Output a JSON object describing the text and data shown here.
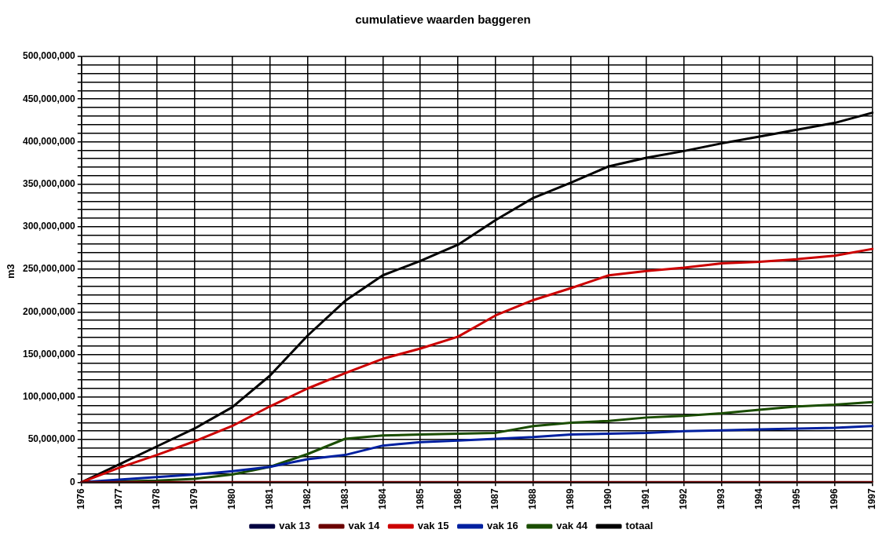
{
  "chart_data": {
    "type": "line",
    "title": "cumulatieve waarden baggeren",
    "ylabel": "m3",
    "categories": [
      "1976",
      "1977",
      "1978",
      "1979",
      "1980",
      "1981",
      "1982",
      "1983",
      "1984",
      "1985",
      "1986",
      "1987",
      "1988",
      "1989",
      "1990",
      "1991",
      "1992",
      "1993",
      "1994",
      "1995",
      "1996",
      "1997"
    ],
    "series": [
      {
        "name": "vak 13",
        "color": "#000040",
        "values": [
          null,
          null,
          null,
          null,
          null,
          null,
          null,
          null,
          null,
          null,
          null,
          null,
          null,
          null,
          null,
          null,
          null,
          null,
          null,
          null,
          null,
          null
        ]
      },
      {
        "name": "vak 14",
        "color": "#6b0000",
        "values": [
          0,
          0,
          0,
          0,
          0,
          0,
          0,
          0,
          0,
          0,
          0,
          0,
          0,
          0,
          0,
          0,
          0,
          0,
          0,
          0,
          0,
          0
        ]
      },
      {
        "name": "vak 15",
        "color": "#cc0000",
        "values": [
          0,
          17000000,
          32000000,
          48000000,
          66000000,
          89000000,
          110000000,
          128000000,
          145000000,
          157000000,
          171000000,
          196000000,
          214000000,
          228000000,
          243000000,
          248000000,
          252000000,
          257000000,
          259000000,
          262000000,
          266000000,
          274000000
        ]
      },
      {
        "name": "vak 16",
        "color": "#0020a0",
        "values": [
          0,
          3000000,
          6000000,
          9000000,
          13000000,
          18000000,
          27000000,
          32000000,
          43000000,
          47000000,
          49000000,
          51000000,
          53000000,
          56000000,
          57000000,
          58000000,
          60000000,
          61000000,
          62000000,
          63000000,
          64000000,
          66000000
        ]
      },
      {
        "name": "vak 44",
        "color": "#1a4d00",
        "values": [
          0,
          1000000,
          2000000,
          4000000,
          9000000,
          18000000,
          33000000,
          51000000,
          55000000,
          56000000,
          57000000,
          58000000,
          66000000,
          70000000,
          72000000,
          76000000,
          78000000,
          81000000,
          85000000,
          89000000,
          91000000,
          94000000
        ]
      },
      {
        "name": "totaal",
        "color": "#000000",
        "values": [
          0,
          21000000,
          42000000,
          63000000,
          88000000,
          125000000,
          172000000,
          213000000,
          243000000,
          260000000,
          279000000,
          308000000,
          334000000,
          352000000,
          371000000,
          381000000,
          389000000,
          398000000,
          406000000,
          414000000,
          422000000,
          434000000
        ]
      }
    ],
    "ylim": [
      0,
      500000000
    ],
    "yticks": [
      0,
      {
        "value": 10000000,
        "label": null
      },
      {
        "value": 20000000,
        "label": null
      },
      {
        "value": 30000000,
        "label": null
      },
      {
        "value": 40000000,
        "label": null
      },
      {
        "value": 50000000,
        "label": "50,000,000"
      },
      {
        "value": 60000000,
        "label": null
      },
      {
        "value": 70000000,
        "label": null
      },
      {
        "value": 80000000,
        "label": null
      },
      {
        "value": 90000000,
        "label": null
      },
      {
        "value": 100000000,
        "label": "100,000,000"
      },
      {
        "value": 110000000,
        "label": null
      },
      {
        "value": 120000000,
        "label": null
      },
      {
        "value": 130000000,
        "label": null
      },
      {
        "value": 140000000,
        "label": null
      },
      {
        "value": 150000000,
        "label": "150,000,000"
      },
      {
        "value": 160000000,
        "label": null
      },
      {
        "value": 170000000,
        "label": null
      },
      {
        "value": 180000000,
        "label": null
      },
      {
        "value": 190000000,
        "label": null
      },
      {
        "value": 200000000,
        "label": "200,000,000"
      },
      {
        "value": 210000000,
        "label": null
      },
      {
        "value": 220000000,
        "label": null
      },
      {
        "value": 230000000,
        "label": null
      },
      {
        "value": 240000000,
        "label": null
      },
      {
        "value": 250000000,
        "label": "250,000,000"
      },
      {
        "value": 260000000,
        "label": null
      },
      {
        "value": 270000000,
        "label": null
      },
      {
        "value": 280000000,
        "label": null
      },
      {
        "value": 290000000,
        "label": null
      },
      {
        "value": 300000000,
        "label": "300,000,000"
      },
      {
        "value": 310000000,
        "label": null
      },
      {
        "value": 320000000,
        "label": null
      },
      {
        "value": 330000000,
        "label": null
      },
      {
        "value": 340000000,
        "label": null
      },
      {
        "value": 350000000,
        "label": "350,000,000"
      },
      {
        "value": 360000000,
        "label": null
      },
      {
        "value": 370000000,
        "label": null
      },
      {
        "value": 380000000,
        "label": null
      },
      {
        "value": 390000000,
        "label": null
      },
      {
        "value": 400000000,
        "label": "400,000,000"
      },
      {
        "value": 410000000,
        "label": null
      },
      {
        "value": 420000000,
        "label": null
      },
      {
        "value": 430000000,
        "label": null
      },
      {
        "value": 440000000,
        "label": null
      },
      {
        "value": 450000000,
        "label": "450,000,000"
      },
      {
        "value": 460000000,
        "label": null
      },
      {
        "value": 470000000,
        "label": null
      },
      {
        "value": 480000000,
        "label": null
      },
      {
        "value": 490000000,
        "label": null
      },
      {
        "value": 500000000,
        "label": "500,000,000"
      }
    ],
    "grid": true,
    "legend": "bottom",
    "marker": "none",
    "line_style": "solid"
  }
}
